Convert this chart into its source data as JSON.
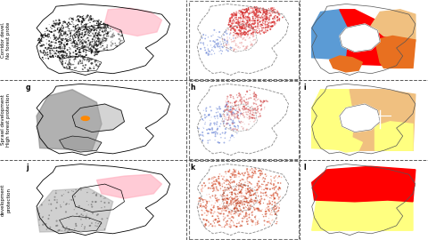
{
  "figure_width": 4.8,
  "figure_height": 2.7,
  "dpi": 100,
  "background_color": "#ffffff",
  "divider_color": "#555555",
  "col_dividers": [
    0.435,
    0.7
  ],
  "row_dividers": [
    0.333,
    0.667
  ],
  "row_labels": [
    [
      "Corridor devel.",
      "No forest prote"
    ],
    [
      "Sprawl development",
      "High forest protection"
    ],
    [
      "development",
      "protection"
    ]
  ],
  "panel_labels": [
    [
      "",
      "",
      ""
    ],
    [
      "g",
      "h",
      "i"
    ],
    [
      "j",
      "k",
      "l"
    ]
  ],
  "label_fontsize": 4.0,
  "panel_label_fontsize": 5.5,
  "col_starts": [
    0.055,
    0.44,
    0.705
  ],
  "col_ends": [
    0.435,
    0.7,
    1.0
  ],
  "row_starts": [
    0.667,
    0.333,
    0.0
  ],
  "row_ends": [
    1.0,
    0.667,
    0.333
  ],
  "yield_colors": {
    "row0": {
      "blue": "#5b9bd5",
      "red": "#ff0000",
      "tan": "#f0c080",
      "orange": "#e87020"
    },
    "row1": {
      "yellow": "#ffff80",
      "tan": "#f0c080"
    },
    "row2": {
      "red": "#ff0000",
      "yellow": "#ffff80"
    }
  }
}
